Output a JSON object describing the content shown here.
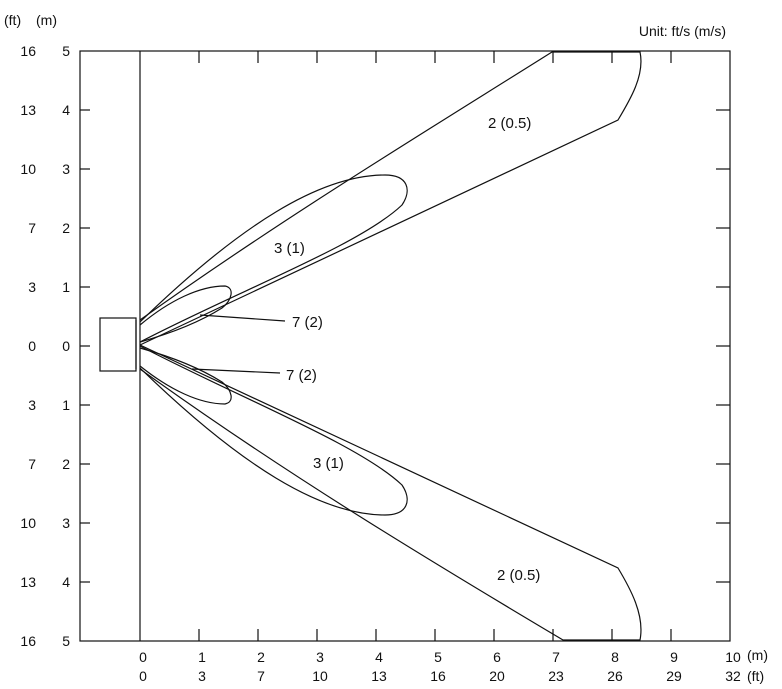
{
  "header": {
    "ft_unit": "(ft)",
    "m_unit": "(m)",
    "unit_note": "Unit: ft/s (m/s)"
  },
  "y_axis": {
    "ft_labels": [
      "16",
      "13",
      "10",
      "7",
      "3",
      "0",
      "3",
      "7",
      "10",
      "13",
      "16"
    ],
    "m_labels": [
      "5",
      "4",
      "3",
      "2",
      "1",
      "0",
      "1",
      "2",
      "3",
      "4",
      "5"
    ]
  },
  "x_axis": {
    "m_labels": [
      "0",
      "1",
      "2",
      "3",
      "4",
      "5",
      "6",
      "7",
      "8",
      "9",
      "10"
    ],
    "ft_labels": [
      "0",
      "3",
      "7",
      "10",
      "13",
      "16",
      "20",
      "23",
      "26",
      "29",
      "32"
    ],
    "m_unit": "(m)",
    "ft_unit": "(ft)"
  },
  "contours": [
    {
      "label": "7 (2)",
      "side": "upper",
      "velocity_ft_s": 7,
      "velocity_m_s": 2
    },
    {
      "label": "7 (2)",
      "side": "lower",
      "velocity_ft_s": 7,
      "velocity_m_s": 2
    },
    {
      "label": "3 (1)",
      "side": "upper",
      "velocity_ft_s": 3,
      "velocity_m_s": 1
    },
    {
      "label": "3 (1)",
      "side": "lower",
      "velocity_ft_s": 3,
      "velocity_m_s": 1
    },
    {
      "label": "2 (0.5)",
      "side": "upper",
      "velocity_ft_s": 2,
      "velocity_m_s": 0.5
    },
    {
      "label": "2 (0.5)",
      "side": "lower",
      "velocity_ft_s": 2,
      "velocity_m_s": 0.5
    }
  ]
}
